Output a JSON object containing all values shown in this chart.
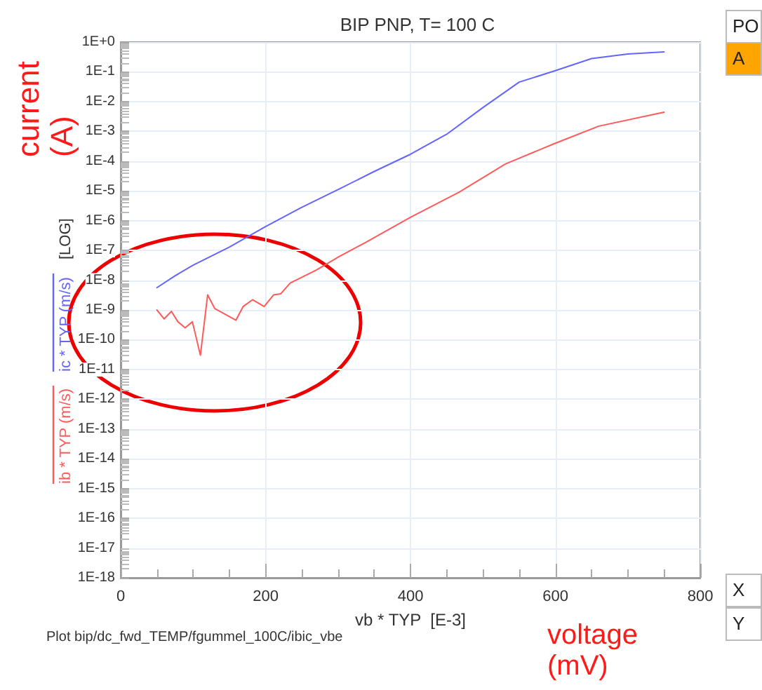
{
  "chart_data": {
    "type": "line",
    "title": "BIP PNP, T= 100 C",
    "xlabel": "vb * TYP  [E-3]",
    "ylabel": "[LOG]",
    "annotations": [
      "current (A)",
      "voltage (mV)",
      "Plot bip/dc_fwd_TEMP/fgummel_100C/ibic_vbe",
      "PO",
      "A",
      "X",
      "Y"
    ],
    "series": [
      {
        "name": "ib * TYP (m/s)",
        "color": "#ff5a5a",
        "x": [
          50,
          60,
          70,
          79,
          89,
          99,
          110,
          120,
          130,
          159,
          169,
          182,
          198,
          211,
          221,
          234,
          270,
          302,
          337,
          400,
          467,
          531,
          600,
          660,
          750
        ],
        "values": [
          1e-09,
          5e-10,
          9e-10,
          4e-10,
          2.5e-10,
          4e-10,
          3e-11,
          3.2e-09,
          1.1e-09,
          4.5e-10,
          1.3e-09,
          2.2e-09,
          1.3e-09,
          3.2e-09,
          3.5e-09,
          8e-09,
          2.2e-08,
          6.3e-08,
          1.8e-07,
          1.3e-06,
          9e-06,
          8e-05,
          0.0004,
          0.0015,
          0.0044
        ]
      },
      {
        "name": "ic * TYP (m/s)",
        "color": "#6464ff",
        "x": [
          50,
          75,
          100,
          150,
          200,
          250,
          300,
          350,
          400,
          450,
          500,
          550,
          600,
          650,
          700,
          750
        ],
        "values": [
          5.6e-09,
          1.4e-08,
          3.2e-08,
          1.3e-07,
          6.3e-07,
          2.8e-06,
          1.1e-05,
          4.5e-05,
          0.00017,
          0.0008,
          0.0063,
          0.045,
          0.11,
          0.28,
          0.4,
          0.47
        ]
      }
    ],
    "xlim": [
      0,
      800
    ],
    "xticks": [
      0,
      200,
      400,
      600,
      800
    ],
    "ylim": [
      1e-18,
      1
    ],
    "yticks": [
      {
        "value": 1e-18,
        "label": "1E-18"
      },
      {
        "value": 1e-17,
        "label": "1E-17"
      },
      {
        "value": 1e-16,
        "label": "1E-16"
      },
      {
        "value": 1e-15,
        "label": "1E-15"
      },
      {
        "value": 1e-14,
        "label": "1E-14"
      },
      {
        "value": 1e-13,
        "label": "1E-13"
      },
      {
        "value": 1e-12,
        "label": "1E-12"
      },
      {
        "value": 1e-11,
        "label": "1E-11"
      },
      {
        "value": 1e-10,
        "label": "1E-10"
      },
      {
        "value": 1e-09,
        "label": "1E-9"
      },
      {
        "value": 1e-08,
        "label": "1E-8"
      },
      {
        "value": 1e-07,
        "label": "1E-7"
      },
      {
        "value": 1e-06,
        "label": "1E-6"
      },
      {
        "value": 1e-05,
        "label": "1E-5"
      },
      {
        "value": 0.0001,
        "label": "1E-4"
      },
      {
        "value": 0.001,
        "label": "1E-3"
      },
      {
        "value": 0.01,
        "label": "1E-2"
      },
      {
        "value": 0.1,
        "label": "1E-1"
      },
      {
        "value": 1,
        "label": "1E+0"
      }
    ],
    "log": true,
    "grid": true,
    "legend": "left",
    "marker": "none",
    "line_style": "solid"
  }
}
